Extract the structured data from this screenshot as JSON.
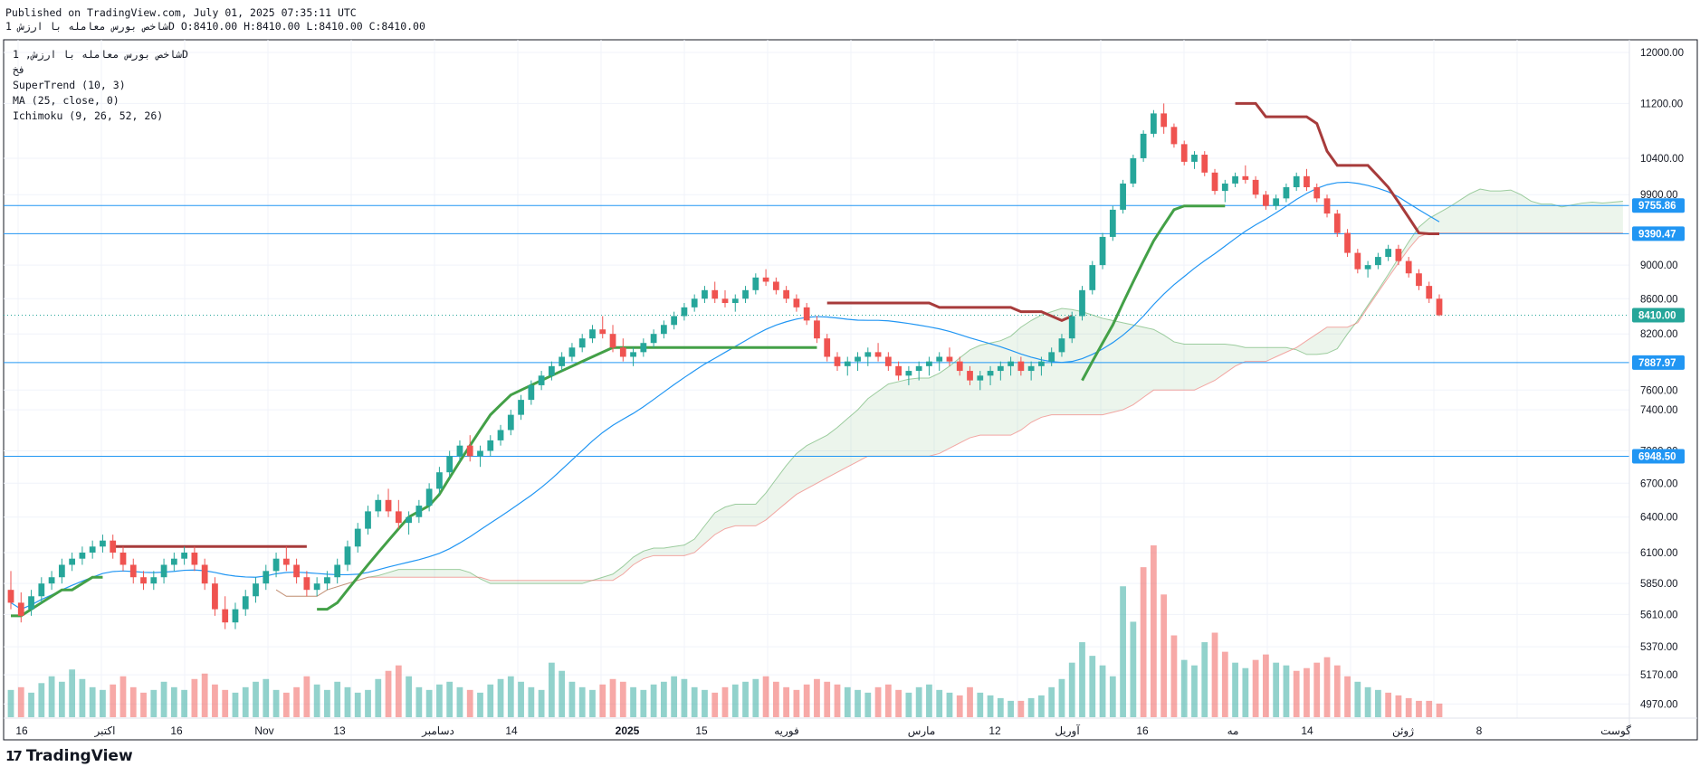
{
  "header": {
    "published": "Published on TradingView.com, July 01, 2025 07:35:11 UTC",
    "ohlc": "شاخص بورس معامله با ارزش 1D O:8410.00 H:8410.00 L:8410.00 C:8410.00"
  },
  "legend": {
    "title": "شاخص بورس معامله با ارزش, 1D",
    "exchange": "فخ",
    "supertrend": "SuperTrend (10, 3)",
    "ma": "MA (25, close, 0)",
    "ichimoku": "Ichimoku (9, 26, 52, 26)"
  },
  "brand": {
    "name": "TradingView",
    "logo": "17"
  },
  "colors": {
    "up": "#26a69a",
    "down": "#ef5350",
    "st_up": "#43a047",
    "st_down": "#a73b3b",
    "ma": "#2196f3",
    "hline": "#2196f3",
    "last": "#26a69a"
  },
  "chart_data": {
    "type": "candlestick",
    "interval": "1D",
    "price_axis_ticks": [
      12000,
      11200,
      10400,
      9900,
      9390.47,
      9000,
      8600,
      8200,
      7600,
      7400,
      7000,
      6700,
      6400,
      6100,
      5850,
      5610,
      5370,
      5170,
      4970
    ],
    "price_axis_tick_labels": [
      "12000.00",
      "11200.00",
      "10400.00",
      "9900.00",
      "9390.47",
      "9000.00",
      "8600.00",
      "8200.00",
      "7600.00",
      "7400.00",
      "7000.00",
      "6700.00",
      "6400.00",
      "6100.00",
      "5850.00",
      "5610.00",
      "5370.00",
      "5170.00",
      "4970.00"
    ],
    "x_axis_labels": [
      "16",
      "اکتبر",
      "16",
      "Nov",
      "13",
      "دسامبر",
      "14",
      "2025",
      "15",
      "فوریه",
      "مارس",
      "12",
      "آوریل",
      "16",
      "مه",
      "14",
      "ژوئن",
      "8",
      "گوست"
    ],
    "horizontal_lines": [
      {
        "value": 9755.86,
        "label": "9755.86"
      },
      {
        "value": 9390.47,
        "label": "9390.47"
      },
      {
        "value": 7887.97,
        "label": "7887.97"
      },
      {
        "value": 6948.5,
        "label": "6948.50"
      }
    ],
    "last_price": {
      "value": 8410.0,
      "label": "8410.00"
    },
    "candles": [
      [
        5800,
        5950,
        5650,
        5700
      ],
      [
        5700,
        5780,
        5550,
        5600
      ],
      [
        5650,
        5800,
        5600,
        5750
      ],
      [
        5750,
        5900,
        5700,
        5850
      ],
      [
        5850,
        5950,
        5800,
        5900
      ],
      [
        5900,
        6050,
        5850,
        6000
      ],
      [
        6000,
        6100,
        5950,
        6050
      ],
      [
        6050,
        6150,
        6000,
        6100
      ],
      [
        6100,
        6200,
        6050,
        6150
      ],
      [
        6150,
        6250,
        6100,
        6200
      ],
      [
        6200,
        6250,
        6050,
        6100
      ],
      [
        6100,
        6150,
        5950,
        6000
      ],
      [
        6000,
        6050,
        5850,
        5900
      ],
      [
        5900,
        5950,
        5800,
        5850
      ],
      [
        5850,
        5950,
        5800,
        5900
      ],
      [
        5900,
        6050,
        5850,
        6000
      ],
      [
        6000,
        6100,
        5950,
        6050
      ],
      [
        6050,
        6150,
        6000,
        6100
      ],
      [
        6100,
        6150,
        5950,
        6000
      ],
      [
        6000,
        6050,
        5800,
        5850
      ],
      [
        5850,
        5900,
        5600,
        5650
      ],
      [
        5650,
        5750,
        5500,
        5550
      ],
      [
        5550,
        5700,
        5500,
        5650
      ],
      [
        5650,
        5800,
        5600,
        5750
      ],
      [
        5750,
        5900,
        5700,
        5850
      ],
      [
        5850,
        6000,
        5800,
        5950
      ],
      [
        5950,
        6100,
        5900,
        6050
      ],
      [
        6050,
        6150,
        5950,
        6000
      ],
      [
        6000,
        6050,
        5850,
        5900
      ],
      [
        5900,
        5950,
        5750,
        5800
      ],
      [
        5800,
        5900,
        5750,
        5850
      ],
      [
        5850,
        5950,
        5800,
        5900
      ],
      [
        5900,
        6050,
        5850,
        6000
      ],
      [
        6000,
        6200,
        5950,
        6150
      ],
      [
        6150,
        6350,
        6100,
        6300
      ],
      [
        6300,
        6500,
        6250,
        6450
      ],
      [
        6450,
        6600,
        6400,
        6550
      ],
      [
        6550,
        6650,
        6400,
        6450
      ],
      [
        6450,
        6550,
        6300,
        6350
      ],
      [
        6350,
        6450,
        6250,
        6400
      ],
      [
        6400,
        6550,
        6350,
        6500
      ],
      [
        6500,
        6700,
        6450,
        6650
      ],
      [
        6650,
        6850,
        6600,
        6800
      ],
      [
        6800,
        7000,
        6750,
        6950
      ],
      [
        6950,
        7100,
        6900,
        7050
      ],
      [
        7050,
        7150,
        6900,
        6950
      ],
      [
        6950,
        7050,
        6850,
        7000
      ],
      [
        7000,
        7150,
        6950,
        7100
      ],
      [
        7100,
        7250,
        7050,
        7200
      ],
      [
        7200,
        7400,
        7150,
        7350
      ],
      [
        7350,
        7550,
        7300,
        7500
      ],
      [
        7500,
        7700,
        7450,
        7650
      ],
      [
        7650,
        7800,
        7600,
        7750
      ],
      [
        7750,
        7900,
        7700,
        7850
      ],
      [
        7850,
        8000,
        7800,
        7950
      ],
      [
        7950,
        8100,
        7900,
        8050
      ],
      [
        8050,
        8200,
        8000,
        8150
      ],
      [
        8150,
        8300,
        8100,
        8250
      ],
      [
        8250,
        8400,
        8150,
        8200
      ],
      [
        8200,
        8300,
        8000,
        8050
      ],
      [
        8050,
        8150,
        7900,
        7950
      ],
      [
        7950,
        8050,
        7850,
        8000
      ],
      [
        8000,
        8150,
        7950,
        8100
      ],
      [
        8100,
        8250,
        8050,
        8200
      ],
      [
        8200,
        8350,
        8150,
        8300
      ],
      [
        8300,
        8450,
        8250,
        8400
      ],
      [
        8400,
        8550,
        8350,
        8500
      ],
      [
        8500,
        8650,
        8450,
        8600
      ],
      [
        8600,
        8750,
        8550,
        8700
      ],
      [
        8700,
        8800,
        8550,
        8600
      ],
      [
        8600,
        8700,
        8500,
        8550
      ],
      [
        8550,
        8650,
        8450,
        8600
      ],
      [
        8600,
        8750,
        8550,
        8700
      ],
      [
        8700,
        8900,
        8650,
        8850
      ],
      [
        8850,
        8950,
        8750,
        8800
      ],
      [
        8800,
        8850,
        8650,
        8700
      ],
      [
        8700,
        8750,
        8550,
        8600
      ],
      [
        8600,
        8650,
        8450,
        8500
      ],
      [
        8500,
        8550,
        8300,
        8350
      ],
      [
        8350,
        8400,
        8100,
        8150
      ],
      [
        8150,
        8200,
        7900,
        7950
      ],
      [
        7950,
        8000,
        7800,
        7850
      ],
      [
        7850,
        7950,
        7750,
        7900
      ],
      [
        7900,
        8000,
        7800,
        7950
      ],
      [
        7950,
        8050,
        7850,
        8000
      ],
      [
        8000,
        8100,
        7900,
        7950
      ],
      [
        7950,
        8000,
        7800,
        7850
      ],
      [
        7850,
        7900,
        7700,
        7750
      ],
      [
        7750,
        7850,
        7650,
        7800
      ],
      [
        7800,
        7900,
        7700,
        7850
      ],
      [
        7850,
        7950,
        7750,
        7900
      ],
      [
        7900,
        8000,
        7800,
        7950
      ],
      [
        7950,
        8050,
        7850,
        7900
      ],
      [
        7900,
        7950,
        7750,
        7800
      ],
      [
        7800,
        7850,
        7650,
        7700
      ],
      [
        7700,
        7800,
        7600,
        7750
      ],
      [
        7750,
        7850,
        7650,
        7800
      ],
      [
        7800,
        7900,
        7700,
        7850
      ],
      [
        7850,
        7950,
        7750,
        7900
      ],
      [
        7900,
        7950,
        7750,
        7800
      ],
      [
        7800,
        7900,
        7700,
        7850
      ],
      [
        7850,
        7950,
        7750,
        7900
      ],
      [
        7900,
        8050,
        7850,
        8000
      ],
      [
        8000,
        8200,
        7950,
        8150
      ],
      [
        8150,
        8450,
        8100,
        8400
      ],
      [
        8400,
        8750,
        8350,
        8700
      ],
      [
        8700,
        9050,
        8650,
        9000
      ],
      [
        9000,
        9400,
        8950,
        9350
      ],
      [
        9350,
        9750,
        9300,
        9700
      ],
      [
        9700,
        10100,
        9650,
        10050
      ],
      [
        10050,
        10450,
        10000,
        10400
      ],
      [
        10400,
        10800,
        10350,
        10750
      ],
      [
        10750,
        11100,
        10700,
        11050
      ],
      [
        11050,
        11200,
        10750,
        10850
      ],
      [
        10850,
        10900,
        10550,
        10600
      ],
      [
        10600,
        10650,
        10300,
        10350
      ],
      [
        10350,
        10500,
        10250,
        10450
      ],
      [
        10450,
        10500,
        10150,
        10200
      ],
      [
        10200,
        10250,
        9900,
        9950
      ],
      [
        9950,
        10100,
        9800,
        10050
      ],
      [
        10050,
        10200,
        10000,
        10150
      ],
      [
        10150,
        10300,
        10050,
        10100
      ],
      [
        10100,
        10150,
        9850,
        9900
      ],
      [
        9900,
        9950,
        9700,
        9750
      ],
      [
        9750,
        9900,
        9700,
        9850
      ],
      [
        9850,
        10050,
        9800,
        10000
      ],
      [
        10000,
        10200,
        9950,
        10150
      ],
      [
        10150,
        10250,
        9950,
        10000
      ],
      [
        10000,
        10050,
        9800,
        9850
      ],
      [
        9850,
        9900,
        9600,
        9650
      ],
      [
        9650,
        9700,
        9350,
        9400
      ],
      [
        9400,
        9450,
        9100,
        9150
      ],
      [
        9150,
        9200,
        8900,
        8950
      ],
      [
        8950,
        9050,
        8850,
        9000
      ],
      [
        9000,
        9150,
        8950,
        9100
      ],
      [
        9100,
        9250,
        9050,
        9200
      ],
      [
        9200,
        9250,
        9000,
        9050
      ],
      [
        9050,
        9100,
        8850,
        8900
      ],
      [
        8900,
        8950,
        8700,
        8750
      ],
      [
        8750,
        8800,
        8550,
        8600
      ],
      [
        8600,
        8650,
        8400,
        8410
      ]
    ],
    "supertrend": [
      5600,
      5600,
      5650,
      5700,
      5750,
      5800,
      5800,
      5850,
      5900,
      5900,
      6150,
      6150,
      6150,
      6150,
      6150,
      6150,
      6150,
      6150,
      6150,
      6150,
      6150,
      6150,
      6150,
      6150,
      6150,
      6150,
      6150,
      6150,
      6150,
      6150,
      5650,
      5650,
      5700,
      5800,
      5900,
      6000,
      6100,
      6200,
      6300,
      6400,
      6450,
      6500,
      6600,
      6750,
      6900,
      7050,
      7200,
      7350,
      7450,
      7550,
      7600,
      7650,
      7700,
      7750,
      7800,
      7850,
      7900,
      7950,
      8000,
      8050,
      8050,
      8050,
      8050,
      8050,
      8050,
      8050,
      8050,
      8050,
      8050,
      8050,
      8050,
      8050,
      8050,
      8050,
      8050,
      8050,
      8050,
      8050,
      8050,
      8050,
      8550,
      8550,
      8550,
      8550,
      8550,
      8550,
      8550,
      8550,
      8550,
      8550,
      8550,
      8500,
      8500,
      8500,
      8500,
      8500,
      8500,
      8500,
      8500,
      8450,
      8450,
      8450,
      8400,
      8350,
      8400,
      7700,
      7900,
      8100,
      8300,
      8550,
      8800,
      9050,
      9300,
      9500,
      9700,
      9750,
      9750,
      9750,
      9750,
      9750,
      11200,
      11200,
      11200,
      11000,
      11000,
      11000,
      11000,
      11000,
      10900,
      10500,
      10300,
      10300,
      10300,
      10300,
      10150,
      10000,
      9800,
      9600,
      9400,
      9390,
      9390
    ],
    "supertrend_direction": [
      1,
      1,
      1,
      1,
      1,
      1,
      1,
      1,
      1,
      1,
      -1,
      -1,
      -1,
      -1,
      -1,
      -1,
      -1,
      -1,
      -1,
      -1,
      -1,
      -1,
      -1,
      -1,
      -1,
      -1,
      -1,
      -1,
      -1,
      -1,
      1,
      1,
      1,
      1,
      1,
      1,
      1,
      1,
      1,
      1,
      1,
      1,
      1,
      1,
      1,
      1,
      1,
      1,
      1,
      1,
      1,
      1,
      1,
      1,
      1,
      1,
      1,
      1,
      1,
      1,
      1,
      1,
      1,
      1,
      1,
      1,
      1,
      1,
      1,
      1,
      1,
      1,
      1,
      1,
      1,
      1,
      1,
      1,
      1,
      1,
      -1,
      -1,
      -1,
      -1,
      -1,
      -1,
      -1,
      -1,
      -1,
      -1,
      -1,
      -1,
      -1,
      -1,
      -1,
      -1,
      -1,
      -1,
      -1,
      -1,
      -1,
      -1,
      -1,
      -1,
      -1,
      1,
      1,
      1,
      1,
      1,
      1,
      1,
      1,
      1,
      1,
      1,
      1,
      1,
      1,
      1,
      -1,
      -1,
      -1,
      -1,
      -1,
      -1,
      -1,
      -1,
      -1,
      -1,
      -1,
      -1,
      -1,
      -1,
      -1,
      -1,
      -1,
      -1,
      -1,
      -1,
      -1
    ],
    "volumes": [
      20,
      22,
      18,
      25,
      30,
      26,
      35,
      28,
      22,
      20,
      24,
      30,
      22,
      18,
      20,
      26,
      22,
      20,
      28,
      32,
      24,
      20,
      18,
      22,
      26,
      28,
      20,
      18,
      22,
      30,
      24,
      20,
      26,
      22,
      18,
      20,
      28,
      34,
      38,
      30,
      22,
      20,
      24,
      26,
      22,
      20,
      18,
      24,
      28,
      30,
      26,
      22,
      20,
      40,
      34,
      26,
      22,
      20,
      24,
      28,
      26,
      22,
      20,
      24,
      26,
      30,
      28,
      22,
      20,
      18,
      22,
      24,
      26,
      28,
      30,
      26,
      22,
      20,
      24,
      28,
      26,
      24,
      22,
      20,
      18,
      22,
      24,
      20,
      18,
      22,
      24,
      20,
      18,
      16,
      22,
      18,
      16,
      14,
      12,
      12,
      14,
      16,
      22,
      28,
      40,
      55,
      45,
      38,
      30,
      96,
      70,
      110,
      126,
      90,
      60,
      42,
      38,
      55,
      62,
      48,
      40,
      36,
      42,
      46,
      40,
      38,
      34,
      36,
      40,
      44,
      38,
      30,
      26,
      22,
      20,
      18,
      16,
      14,
      12,
      12,
      10
    ],
    "volume_direction": [
      1,
      -1,
      1,
      1,
      1,
      1,
      1,
      1,
      1,
      1,
      -1,
      -1,
      -1,
      -1,
      1,
      1,
      1,
      1,
      -1,
      -1,
      -1,
      -1,
      1,
      1,
      1,
      1,
      1,
      -1,
      -1,
      -1,
      1,
      1,
      1,
      1,
      1,
      1,
      1,
      -1,
      -1,
      1,
      1,
      1,
      1,
      1,
      1,
      -1,
      1,
      1,
      1,
      1,
      1,
      1,
      1,
      1,
      1,
      1,
      1,
      1,
      -1,
      -1,
      -1,
      1,
      1,
      1,
      1,
      1,
      1,
      1,
      1,
      -1,
      -1,
      1,
      1,
      1,
      -1,
      -1,
      -1,
      -1,
      -1,
      -1,
      -1,
      -1,
      1,
      1,
      1,
      -1,
      -1,
      -1,
      1,
      1,
      1,
      1,
      1,
      -1,
      -1,
      1,
      1,
      1,
      1,
      -1,
      1,
      1,
      1,
      1,
      1,
      1,
      1,
      1,
      1,
      1,
      1,
      -1,
      -1,
      -1,
      -1,
      1,
      1,
      1,
      -1,
      -1,
      1,
      1,
      -1,
      -1,
      1,
      1,
      -1,
      -1,
      -1,
      -1,
      -1,
      -1,
      1,
      1,
      1,
      -1,
      -1,
      -1,
      -1,
      -1,
      -1
    ]
  }
}
